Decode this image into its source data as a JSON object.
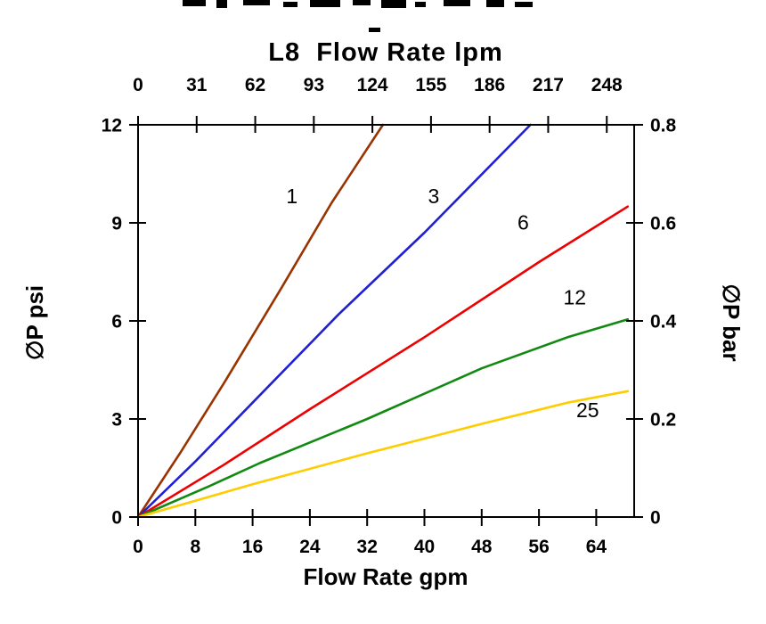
{
  "chart_data": {
    "type": "line",
    "title": "L8  Flow Rate lpm",
    "grid": false,
    "legend_position": "inline-labels",
    "x_top": {
      "label": "L8  Flow Rate lpm",
      "unit": "lpm",
      "ticks": [
        0,
        31,
        62,
        93,
        124,
        155,
        186,
        217,
        248
      ],
      "range": [
        0,
        262.5
      ]
    },
    "x_bottom": {
      "label": "Flow Rate gpm",
      "unit": "gpm",
      "ticks": [
        0,
        8,
        16,
        24,
        32,
        40,
        48,
        56,
        64
      ],
      "range": [
        0,
        69.3
      ]
    },
    "y_left": {
      "label": "∅P psi",
      "unit": "psi",
      "ticks": [
        0,
        3,
        6,
        9,
        12
      ],
      "range": [
        0,
        12
      ]
    },
    "y_right": {
      "label": "∅P bar",
      "unit": "bar",
      "ticks": [
        0,
        0.2,
        0.4,
        0.6,
        0.8
      ],
      "range": [
        0,
        0.8
      ]
    },
    "series": [
      {
        "name": "1",
        "label": "1",
        "color": "#993300",
        "points": [
          [
            0,
            0
          ],
          [
            6,
            2.0
          ],
          [
            12,
            4.1
          ],
          [
            20,
            7.0
          ],
          [
            27,
            9.6
          ],
          [
            34.2,
            12
          ]
        ],
        "label_at": [
          21.5,
          9.6
        ]
      },
      {
        "name": "3",
        "label": "3",
        "color": "#1f1fd6",
        "points": [
          [
            0,
            0
          ],
          [
            8,
            1.7
          ],
          [
            16,
            3.5
          ],
          [
            28,
            6.2
          ],
          [
            40,
            8.7
          ],
          [
            54.8,
            12
          ]
        ],
        "label_at": [
          41.3,
          9.6
        ]
      },
      {
        "name": "6",
        "label": "6",
        "color": "#ee0000",
        "points": [
          [
            0,
            0
          ],
          [
            12,
            1.6
          ],
          [
            24,
            3.3
          ],
          [
            40,
            5.5
          ],
          [
            56,
            7.8
          ],
          [
            68.4,
            9.5
          ]
        ],
        "label_at": [
          53.8,
          8.8
        ]
      },
      {
        "name": "12",
        "label": "12",
        "color": "#128a12",
        "points": [
          [
            0,
            0
          ],
          [
            10,
            0.95
          ],
          [
            17,
            1.65
          ],
          [
            32,
            3.0
          ],
          [
            48,
            4.55
          ],
          [
            60,
            5.5
          ],
          [
            68.4,
            6.05
          ]
        ],
        "label_at": [
          61,
          6.5
        ]
      },
      {
        "name": "25",
        "label": "25",
        "color": "#ffcc00",
        "points": [
          [
            0,
            0
          ],
          [
            8,
            0.5
          ],
          [
            16,
            1.0
          ],
          [
            32,
            1.95
          ],
          [
            48,
            2.85
          ],
          [
            60,
            3.5
          ],
          [
            68.4,
            3.85
          ]
        ],
        "label_at": [
          62.8,
          3.05
        ]
      }
    ]
  }
}
